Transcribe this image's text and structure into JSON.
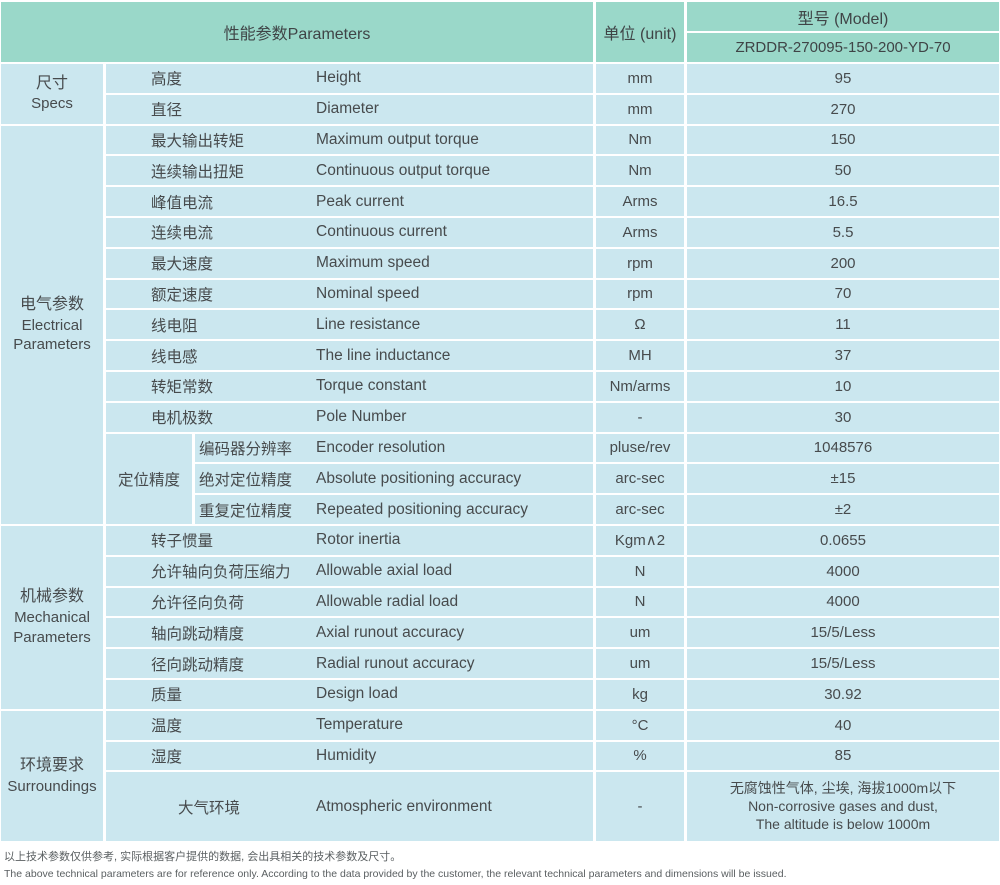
{
  "colors": {
    "header_teal": "#9ad8c9",
    "cell_blue": "#cbe7ef",
    "text": "#474b4d",
    "border_white": "#ffffff"
  },
  "header": {
    "parameters_label": "性能参数Parameters",
    "unit_label": "单位 (unit)",
    "model_label": "型号 (Model)",
    "model_value": "ZRDDR-270095-150-200-YD-70"
  },
  "sections": [
    {
      "id": "specs",
      "label_cn": "尺寸",
      "label_en_lines": [
        "Specs"
      ],
      "rows": [
        {
          "cn": "高度",
          "en": "Height",
          "unit": "mm",
          "value": "95"
        },
        {
          "cn": "直径",
          "en": "Diameter",
          "unit": "mm",
          "value": "270"
        }
      ]
    },
    {
      "id": "electrical",
      "label_cn": "电气参数",
      "label_en_lines": [
        "Electrical",
        "Parameters"
      ],
      "rows": [
        {
          "cn": "最大输出转矩",
          "en": "Maximum output torque",
          "unit": "Nm",
          "value": "150"
        },
        {
          "cn": "连续输出扭矩",
          "en": "Continuous output torque",
          "unit": "Nm",
          "value": "50"
        },
        {
          "cn": "峰值电流",
          "en": "Peak current",
          "unit": "Arms",
          "value": "16.5"
        },
        {
          "cn": "连续电流",
          "en": "Continuous current",
          "unit": "Arms",
          "value": "5.5"
        },
        {
          "cn": "最大速度",
          "en": "Maximum speed",
          "unit": "rpm",
          "value": "200"
        },
        {
          "cn": "额定速度",
          "en": "Nominal speed",
          "unit": "rpm",
          "value": "70"
        },
        {
          "cn": "线电阻",
          "en": "Line resistance",
          "unit": "Ω",
          "value": "11"
        },
        {
          "cn": "线电感",
          "en": "The line inductance",
          "unit": "MH",
          "value": "37"
        },
        {
          "cn": "转矩常数",
          "en": "Torque constant",
          "unit": "Nm/arms",
          "value": "10"
        },
        {
          "cn": "电机极数",
          "en": "Pole Number",
          "unit": "-",
          "value": "30"
        },
        {
          "type": "group",
          "label": "定位精度",
          "rows": [
            {
              "cn": "编码器分辨率",
              "en": "Encoder resolution",
              "unit": "pluse/rev",
              "value": "1048576"
            },
            {
              "cn": "绝对定位精度",
              "en": "Absolute positioning accuracy",
              "unit": "arc-sec",
              "value": "±15"
            },
            {
              "cn": "重复定位精度",
              "en": "Repeated positioning accuracy",
              "unit": "arc-sec",
              "value": "±2"
            }
          ]
        }
      ]
    },
    {
      "id": "mechanical",
      "label_cn": "机械参数",
      "label_en_lines": [
        "Mechanical",
        "Parameters"
      ],
      "rows": [
        {
          "cn": "转子惯量",
          "en": "Rotor inertia",
          "unit": "Kgm∧2",
          "value": "0.0655"
        },
        {
          "cn": "允许轴向负荷压缩力",
          "en": "Allowable axial load",
          "unit": "N",
          "value": "4000"
        },
        {
          "cn": "允许径向负荷",
          "en": "Allowable radial load",
          "unit": "N",
          "value": "4000"
        },
        {
          "cn": "轴向跳动精度",
          "en": "Axial runout accuracy",
          "unit": "um",
          "value": "15/5/Less"
        },
        {
          "cn": "径向跳动精度",
          "en": "Radial runout accuracy",
          "unit": "um",
          "value": "15/5/Less"
        },
        {
          "cn": "质量",
          "en": "Design load",
          "unit": "kg",
          "value": "30.92"
        }
      ]
    },
    {
      "id": "surroundings",
      "label_cn": "环境要求",
      "label_en_lines": [
        "Surroundings"
      ],
      "rows": [
        {
          "cn": "温度",
          "en": "Temperature",
          "unit": "°C",
          "value": "40"
        },
        {
          "cn": "湿度",
          "en": "Humidity",
          "unit": "%",
          "value": "85"
        },
        {
          "cn": "大气环境",
          "en": "Atmospheric environment",
          "unit": "-",
          "tall": true,
          "cn_center": true,
          "value_lines": [
            "无腐蚀性气体, 尘埃, 海拔1000m以下",
            "Non-corrosive gases and dust,",
            "The altitude is below 1000m"
          ]
        }
      ]
    }
  ],
  "footer": {
    "note_cn": "以上技术参数仅供参考, 实际根据客户提供的数据, 会出具相关的技术参数及尺寸。",
    "note_en": "The above technical parameters are for reference only. According to the data provided by the customer, the relevant technical parameters and dimensions will be issued."
  }
}
